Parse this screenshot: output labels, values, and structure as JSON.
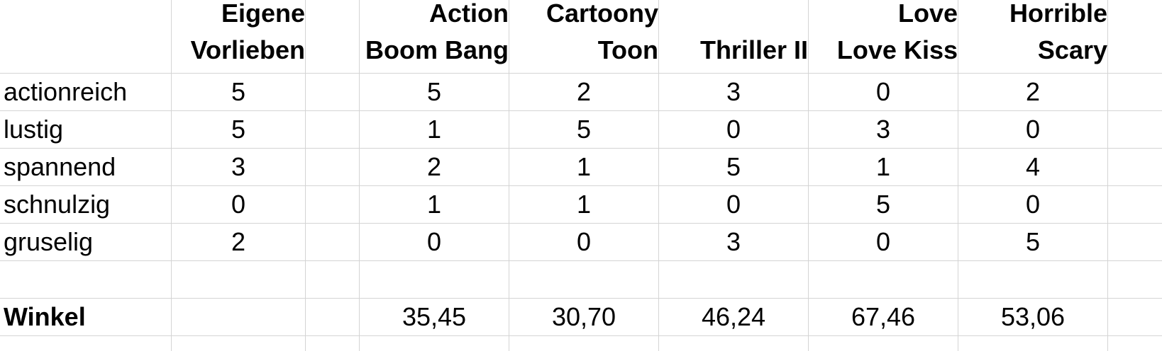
{
  "columns": [
    {
      "line1": "",
      "line2": ""
    },
    {
      "line1": "Eigene",
      "line2": "Vorlieben"
    },
    {
      "line1": "",
      "line2": ""
    },
    {
      "line1": "Action",
      "line2": "Boom Bang"
    },
    {
      "line1": "Cartoony",
      "line2": "Toon"
    },
    {
      "line1": "",
      "line2": "Thriller II"
    },
    {
      "line1": "Love",
      "line2": "Love Kiss"
    },
    {
      "line1": "Horrible",
      "line2": "Scary"
    }
  ],
  "rows": [
    {
      "label": "actionreich",
      "own": "5",
      "values": [
        "5",
        "2",
        "3",
        "0",
        "2"
      ]
    },
    {
      "label": "lustig",
      "own": "5",
      "values": [
        "1",
        "5",
        "0",
        "3",
        "0"
      ]
    },
    {
      "label": "spannend",
      "own": "3",
      "values": [
        "2",
        "1",
        "5",
        "1",
        "4"
      ]
    },
    {
      "label": "schnulzig",
      "own": "0",
      "values": [
        "1",
        "1",
        "0",
        "5",
        "0"
      ]
    },
    {
      "label": "gruselig",
      "own": "2",
      "values": [
        "0",
        "0",
        "3",
        "0",
        "5"
      ]
    }
  ],
  "angle_row": {
    "label": "Winkel",
    "values": [
      "35,45",
      "30,70",
      "46,24",
      "67,46",
      "53,06"
    ]
  }
}
